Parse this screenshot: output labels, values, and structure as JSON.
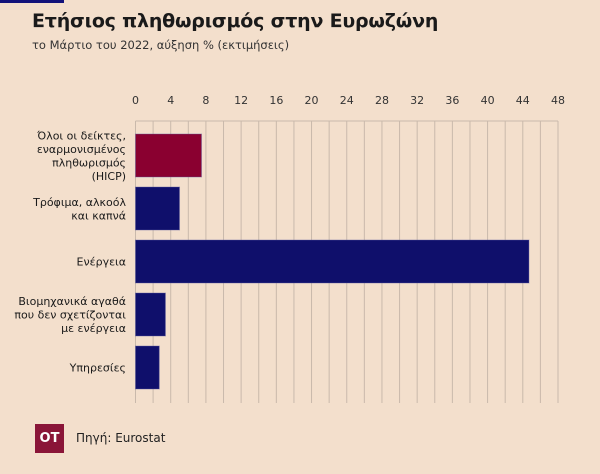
{
  "header": {
    "title": "Ετήσιος πληθωρισμός στην Ευρωζώνη",
    "subtitle": "το Μάρτιο του 2022, αύξηση % (εκτιμήσεις)"
  },
  "chart_data": {
    "type": "bar",
    "orientation": "horizontal",
    "title": "Ετήσιος πληθωρισμός στην Ευρωζώνη",
    "subtitle": "το Μάρτιο του 2022, αύξηση % (εκτιμήσεις)",
    "categories": [
      [
        "Όλοι οι δείκτες,",
        "εναρμονισμένος",
        "πληθωρισμός",
        "(HICP)"
      ],
      [
        "Τρόφιμα, αλκοόλ",
        "και καπνά"
      ],
      [
        "Ενέργεια"
      ],
      [
        "Βιομηχανικά αγαθά",
        "που δεν σχετίζονται",
        "με ενέργεια"
      ],
      [
        "Υπηρεσίες"
      ]
    ],
    "values": [
      7.5,
      5.0,
      44.7,
      3.4,
      2.7
    ],
    "colors": [
      "#8a0030",
      "#0f0f6b",
      "#0f0f6b",
      "#0f0f6b",
      "#0f0f6b"
    ],
    "xlim": [
      0,
      48
    ],
    "ticks": [
      0,
      4,
      8,
      12,
      16,
      20,
      24,
      28,
      32,
      36,
      40,
      44,
      48
    ],
    "grid": true,
    "xlabel": "",
    "ylabel": ""
  },
  "footer": {
    "logo_text": "OT",
    "source": "Πηγή: Eurostat"
  }
}
